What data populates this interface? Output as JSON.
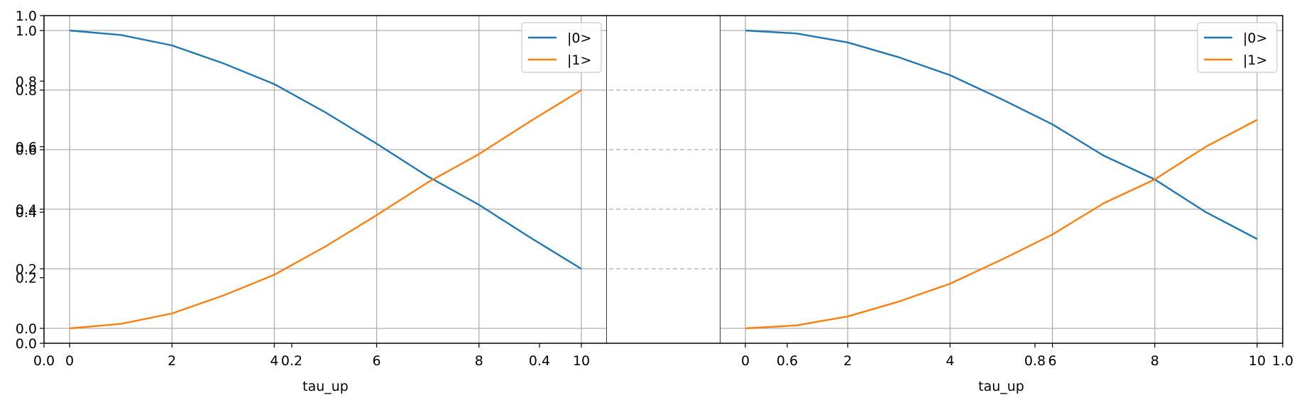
{
  "figure": {
    "outer_axis": {
      "left_ticks": [
        "0.0",
        "0.2",
        "0.4",
        "0.6",
        "0.8",
        "1.0"
      ],
      "bottom_ticks": [
        "0.0",
        "0.2",
        "0.4",
        "0.6",
        "0.8",
        "1.0"
      ]
    }
  },
  "colors": {
    "series0": "#1f77b4",
    "series1": "#ff7f0e",
    "grid": "#b0b0b0"
  },
  "chart_data": [
    {
      "type": "line",
      "xlabel": "tau_up",
      "ylabel": "",
      "xlim": [
        -0.5,
        10.5
      ],
      "ylim": [
        -0.05,
        1.05
      ],
      "xticks": [
        0,
        2,
        4,
        6,
        8,
        10
      ],
      "yticks": [
        0.0,
        0.2,
        0.4,
        0.6,
        0.8,
        1.0
      ],
      "grid": true,
      "legend": "top-right",
      "series": [
        {
          "name": "|0>",
          "x": [
            0,
            1,
            2,
            3,
            4,
            5,
            6,
            7,
            8,
            9,
            10
          ],
          "values": [
            1.0,
            0.985,
            0.95,
            0.89,
            0.82,
            0.725,
            0.62,
            0.51,
            0.415,
            0.305,
            0.2
          ]
        },
        {
          "name": "|1>",
          "x": [
            0,
            1,
            2,
            3,
            4,
            5,
            6,
            7,
            8,
            9,
            10
          ],
          "values": [
            0.0,
            0.015,
            0.05,
            0.11,
            0.18,
            0.275,
            0.38,
            0.49,
            0.585,
            0.695,
            0.8
          ]
        }
      ]
    },
    {
      "type": "line",
      "xlabel": "tau_up",
      "ylabel": "",
      "xlim": [
        -0.5,
        10.5
      ],
      "ylim": [
        -0.05,
        1.05
      ],
      "xticks": [
        0,
        2,
        4,
        6,
        8,
        10
      ],
      "yticks": [
        0.0,
        0.2,
        0.4,
        0.6,
        0.8,
        1.0
      ],
      "grid": true,
      "legend": "top-right",
      "series": [
        {
          "name": "|0>",
          "x": [
            0,
            1,
            2,
            3,
            4,
            5,
            6,
            7,
            8,
            9,
            10
          ],
          "values": [
            1.0,
            0.99,
            0.96,
            0.91,
            0.85,
            0.77,
            0.685,
            0.58,
            0.5,
            0.39,
            0.3
          ]
        },
        {
          "name": "|1>",
          "x": [
            0,
            1,
            2,
            3,
            4,
            5,
            6,
            7,
            8,
            9,
            10
          ],
          "values": [
            0.0,
            0.01,
            0.04,
            0.09,
            0.15,
            0.23,
            0.315,
            0.42,
            0.5,
            0.61,
            0.7
          ]
        }
      ]
    }
  ]
}
